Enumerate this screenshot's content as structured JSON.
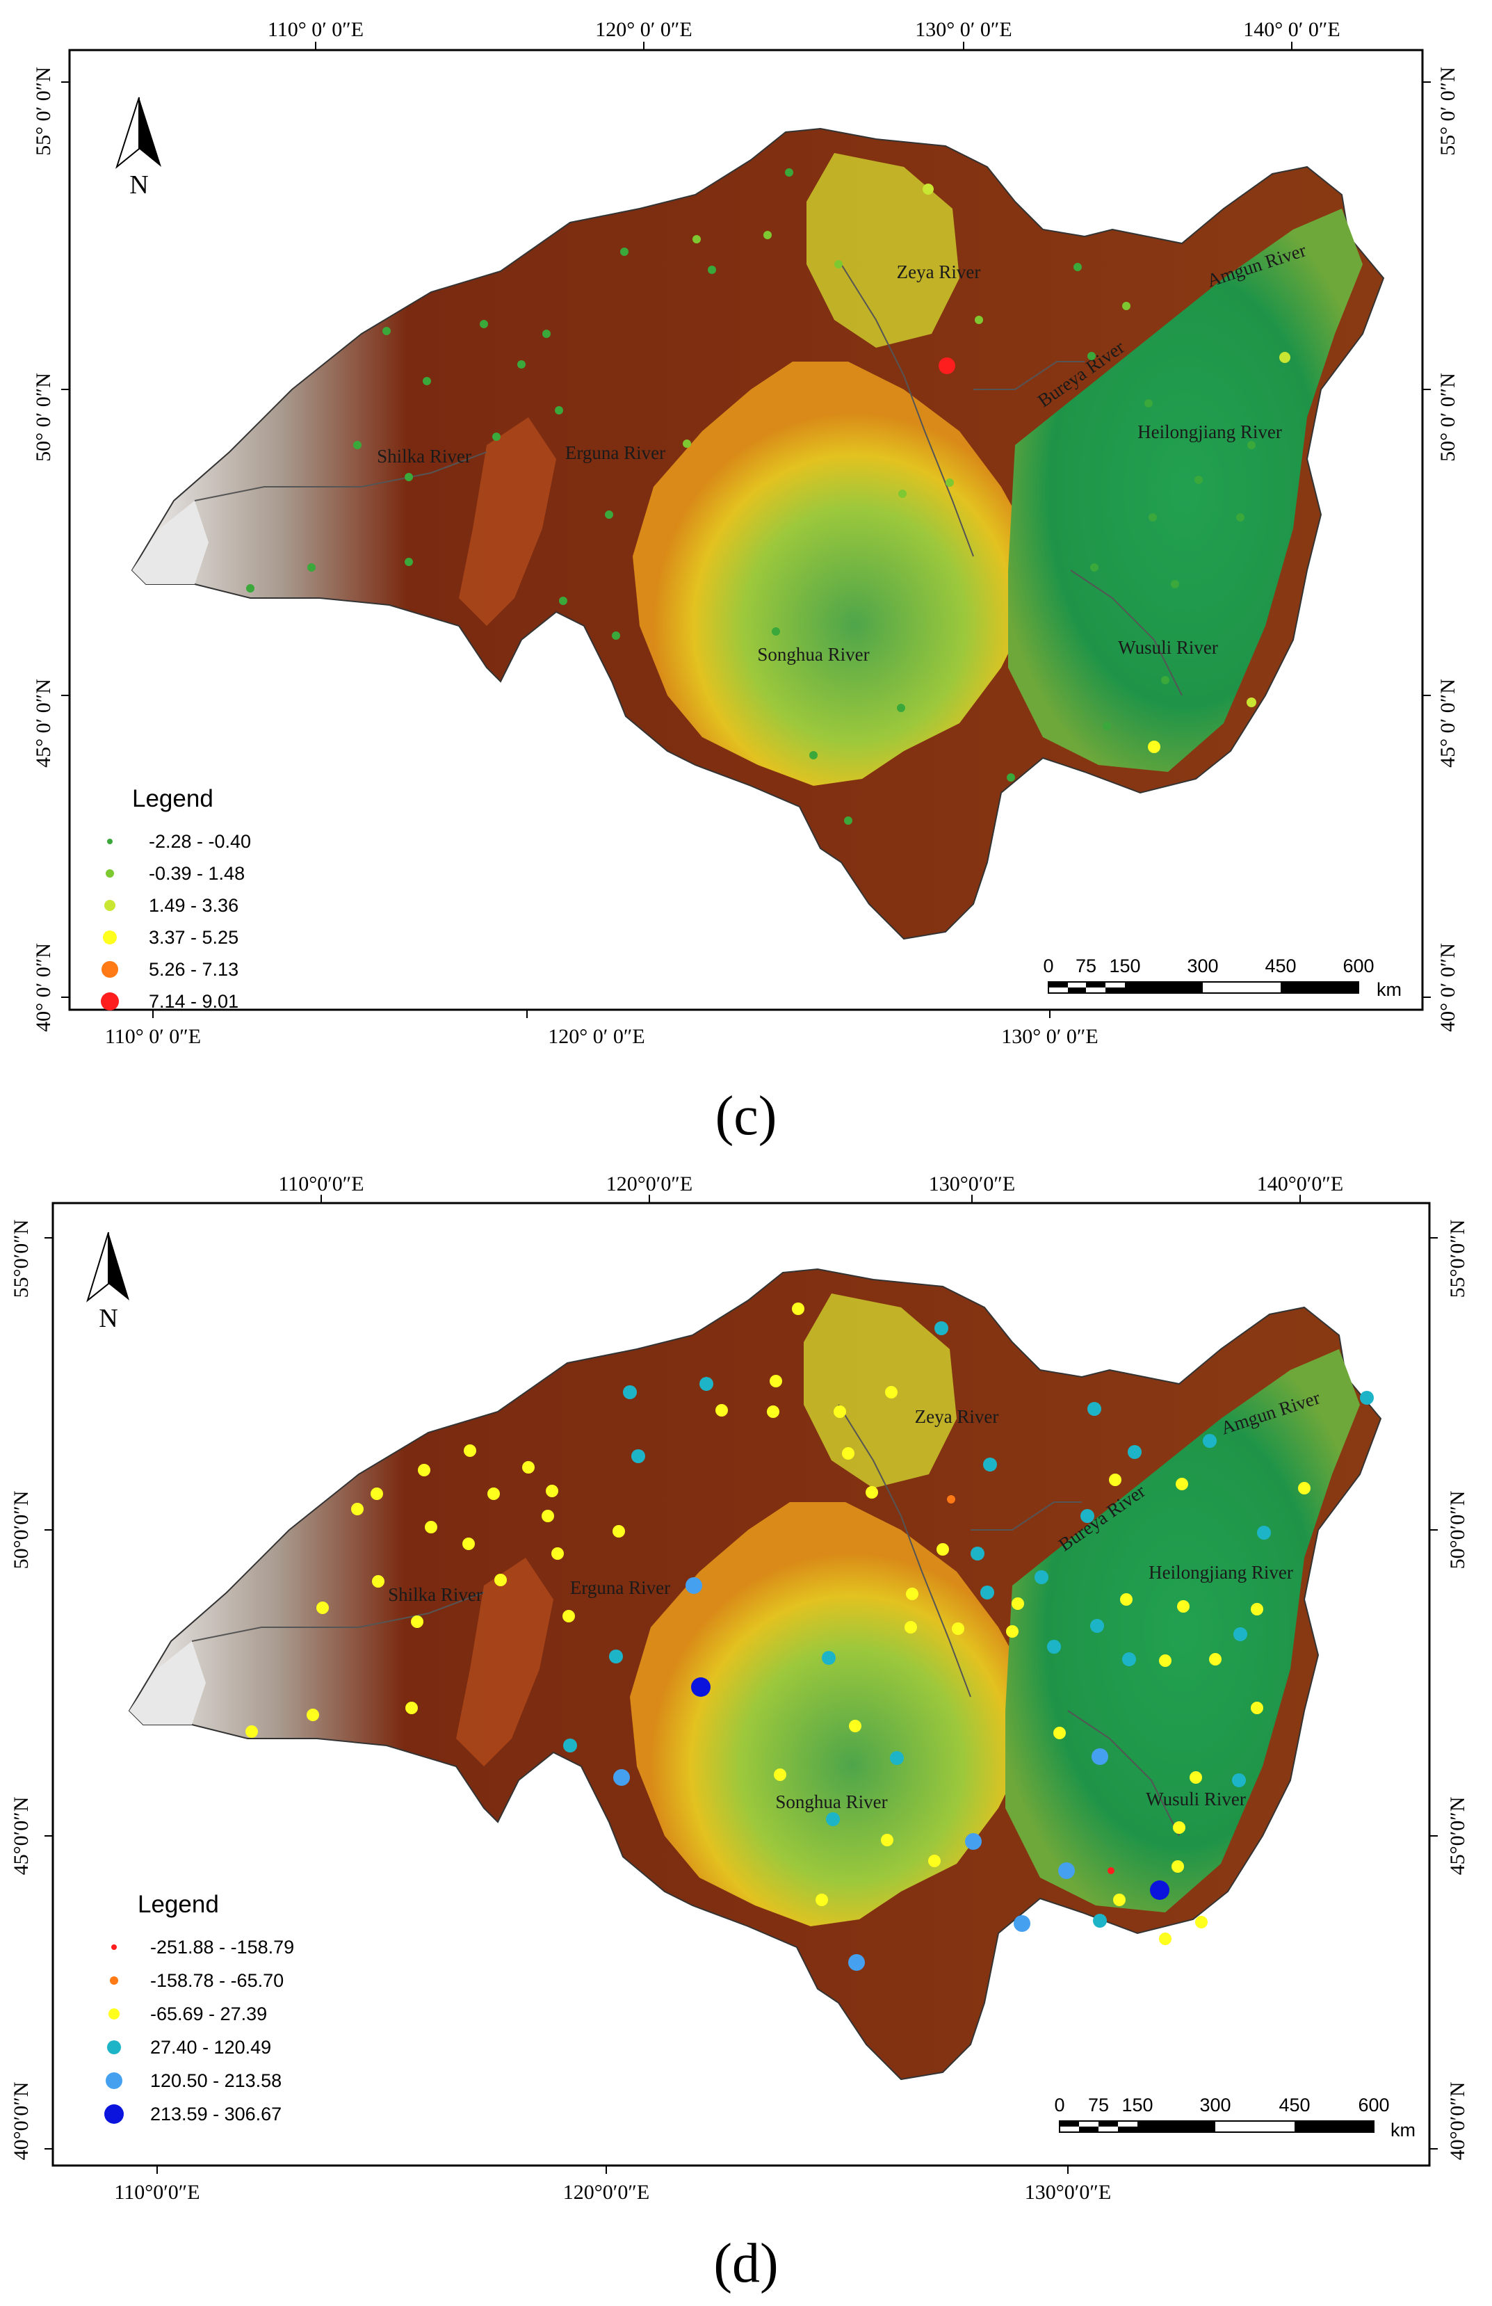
{
  "panels": [
    {
      "caption": "(c)",
      "axis_top": [
        "110° 0′ 0″E",
        "120° 0′ 0″E",
        "130° 0′ 0″E",
        "140° 0′ 0″E"
      ],
      "axis_bottom": [
        "110° 0′ 0″E",
        "120° 0′ 0″E",
        "130° 0′ 0″E"
      ],
      "axis_left": [
        "55° 0′ 0″N",
        "50° 0′ 0″N",
        "45° 0′ 0″N",
        "40° 0′ 0″N"
      ],
      "axis_right": [
        "55° 0′ 0″N",
        "50° 0′ 0″N",
        "45° 0′ 0″N",
        "40° 0′ 0″N"
      ],
      "north_label": "N",
      "rivers": [
        "Zeya River",
        "Amgun River",
        "Bureya River",
        "Heilongjiang River",
        "Shilka River",
        "Erguna River",
        "Songhua River",
        "Wusuli River"
      ],
      "legend": {
        "title": "Legend",
        "classes": [
          {
            "label": "-2.28 - -0.40",
            "color": "#3aa83a"
          },
          {
            "label": "-0.39 - 1.48",
            "color": "#7ec832"
          },
          {
            "label": "1.49 - 3.36",
            "color": "#c8e632"
          },
          {
            "label": "3.37 - 5.25",
            "color": "#ffff1e"
          },
          {
            "label": "5.26 - 7.13",
            "color": "#ff7a14"
          },
          {
            "label": "7.14 - 9.01",
            "color": "#ff1e1e"
          }
        ]
      },
      "scale": {
        "ticks": [
          "0",
          "75",
          "150",
          "300",
          "450",
          "600"
        ],
        "unit": "km"
      }
    },
    {
      "caption": "(d)",
      "axis_top": [
        "110°0′0″E",
        "120°0′0″E",
        "130°0′0″E",
        "140°0′0″E"
      ],
      "axis_bottom": [
        "110°0′0″E",
        "120°0′0″E",
        "130°0′0″E"
      ],
      "axis_left": [
        "55°0′0″N",
        "50°0′0″N",
        "45°0′0″N",
        "40°0′0″N"
      ],
      "axis_right": [
        "55°0′0″N",
        "50°0′0″N",
        "45°0′0″N",
        "40°0′0″N"
      ],
      "north_label": "N",
      "rivers": [
        "Zeya River",
        "Amgun River",
        "Bureya River",
        "Heilongjiang River",
        "Shilka River",
        "Erguna River",
        "Songhua River",
        "Wusuli River"
      ],
      "legend": {
        "title": "Legend",
        "classes": [
          {
            "label": "-251.88 - -158.79",
            "color": "#ff1e1e"
          },
          {
            "label": "-158.78 - -65.70",
            "color": "#ff7a14"
          },
          {
            "label": "-65.69 - 27.39",
            "color": "#ffff1e"
          },
          {
            "label": "27.40 - 120.49",
            "color": "#1eb4c8"
          },
          {
            "label": "120.50 - 213.58",
            "color": "#46a0f0"
          },
          {
            "label": "213.59 - 306.67",
            "color": "#0a14dc"
          }
        ]
      },
      "scale": {
        "ticks": [
          "0",
          "75",
          "150",
          "300",
          "450",
          "600"
        ],
        "unit": "km"
      }
    }
  ]
}
